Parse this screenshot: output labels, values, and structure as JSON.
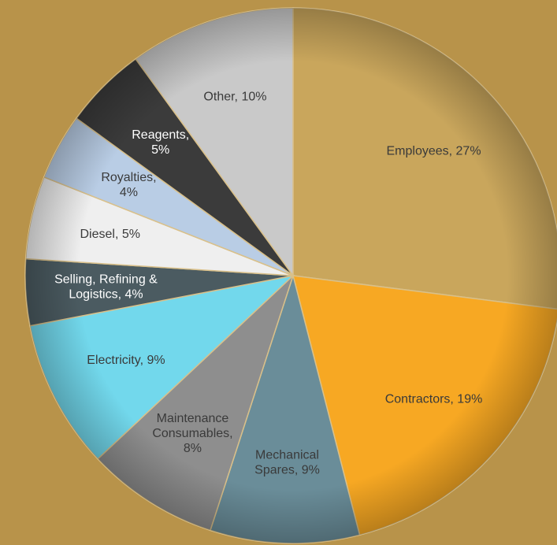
{
  "chart_data": {
    "type": "pie",
    "values": [
      27,
      19,
      9,
      8,
      9,
      4,
      5,
      4,
      5,
      10
    ],
    "value_labels": [
      "Employees, 27%",
      "Contractors, 19%",
      "Mechanical\nSpares, 9%",
      "Maintenance\nConsumables,\n8%",
      "Electricity, 9%",
      "Selling, Refining &\nLogistics, 4%",
      "Diesel, 5%",
      "Royalties,\n4%",
      "Reagents,\n5%",
      "Other, 10%"
    ],
    "colors": [
      "#c9a65c",
      "#f7a823",
      "#6a8d99",
      "#8e8e8e",
      "#72d8ec",
      "#4b5b61",
      "#efefef",
      "#b9cde5",
      "#3b3b3b",
      "#c9c9c9"
    ],
    "start_angle": 0,
    "direction": "clockwise"
  }
}
